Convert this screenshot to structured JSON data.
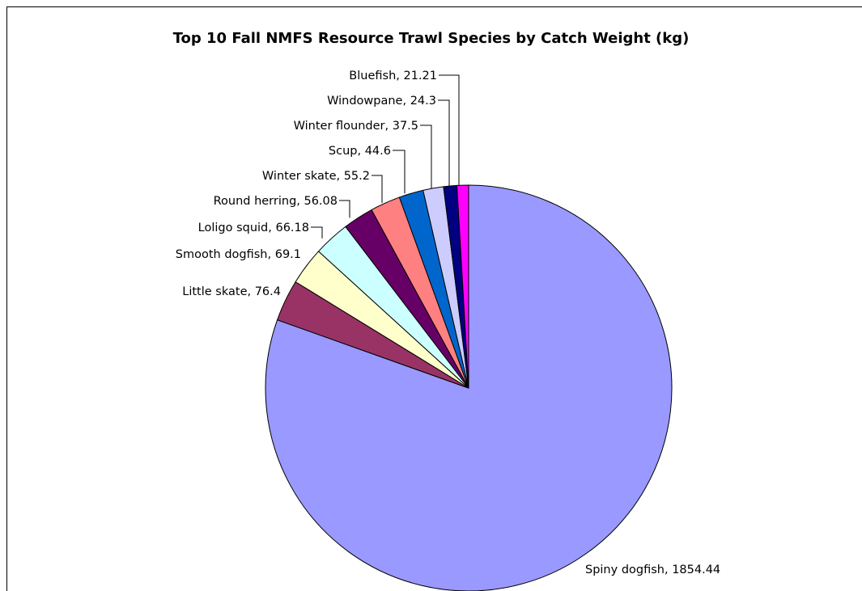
{
  "chart_data": {
    "type": "pie",
    "title": "Top 10 Fall NMFS Resource Trawl Species by Catch Weight (kg)",
    "slices": [
      {
        "name": "Spiny dogfish",
        "value": 1854.44,
        "label": "Spiny dogfish, 1854.44",
        "color": "#9999FF"
      },
      {
        "name": "Little skate",
        "value": 76.4,
        "label": "Little skate, 76.4",
        "color": "#993366"
      },
      {
        "name": "Smooth dogfish",
        "value": 69.1,
        "label": "Smooth dogfish, 69.1",
        "color": "#FFFFCC"
      },
      {
        "name": "Loligo squid",
        "value": 66.18,
        "label": "Loligo squid, 66.18",
        "color": "#CCFFFF"
      },
      {
        "name": "Round herring",
        "value": 56.08,
        "label": "Round herring, 56.08",
        "color": "#660066"
      },
      {
        "name": "Winter skate",
        "value": 55.2,
        "label": "Winter skate, 55.2",
        "color": "#FF8080"
      },
      {
        "name": "Scup",
        "value": 44.6,
        "label": "Scup, 44.6",
        "color": "#0066CC"
      },
      {
        "name": "Winter flounder",
        "value": 37.5,
        "label": "Winter flounder, 37.5",
        "color": "#CCCCFF"
      },
      {
        "name": "Windowpane",
        "value": 24.3,
        "label": "Windowpane, 24.3",
        "color": "#000080"
      },
      {
        "name": "Bluefish",
        "value": 21.21,
        "label": "Bluefish, 21.21",
        "color": "#FF00FF"
      }
    ],
    "start_angle": "12 o'clock",
    "direction": "clockwise",
    "legend": "none",
    "grid": false
  }
}
